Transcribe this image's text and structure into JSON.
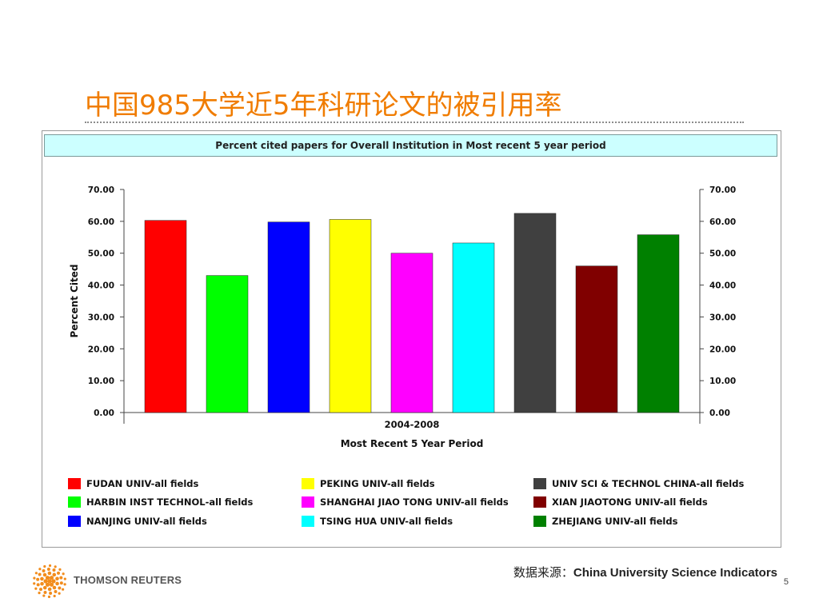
{
  "slide": {
    "title": "中国985大学近5年科研论文的被引用率",
    "source_label": "数据来源：",
    "source_value": "China University Science Indicators",
    "page_number": "5",
    "logo_text": "THOMSON REUTERS",
    "title_color": "#f07c00"
  },
  "chart_data": {
    "type": "bar",
    "title": "Percent cited papers for Overall Institution in Most recent 5 year period",
    "xlabel": "Most Recent 5 Year Period",
    "ylabel": "Percent Cited",
    "category": "2004-2008",
    "ylim": [
      0,
      70
    ],
    "yticks": [
      "0.00",
      "10.00",
      "20.00",
      "30.00",
      "40.00",
      "50.00",
      "60.00",
      "70.00"
    ],
    "grid": false,
    "series": [
      {
        "name": "FUDAN UNIV-all fields",
        "value": 60.3,
        "color": "#ff0000"
      },
      {
        "name": "HARBIN INST TECHNOL-all fields",
        "value": 43.0,
        "color": "#00ff00"
      },
      {
        "name": "NANJING UNIV-all fields",
        "value": 59.8,
        "color": "#0000ff"
      },
      {
        "name": "PEKING UNIV-all fields",
        "value": 60.6,
        "color": "#ffff00"
      },
      {
        "name": "SHANGHAI JIAO TONG UNIV-all fields",
        "value": 50.0,
        "color": "#ff00ff"
      },
      {
        "name": "TSING HUA UNIV-all fields",
        "value": 53.2,
        "color": "#00ffff"
      },
      {
        "name": "UNIV SCI & TECHNOL CHINA-all fields",
        "value": 62.5,
        "color": "#404040"
      },
      {
        "name": "XIAN JIAOTONG UNIV-all fields",
        "value": 46.0,
        "color": "#800000"
      },
      {
        "name": "ZHEJIANG UNIV-all fields",
        "value": 55.8,
        "color": "#008000"
      }
    ]
  }
}
